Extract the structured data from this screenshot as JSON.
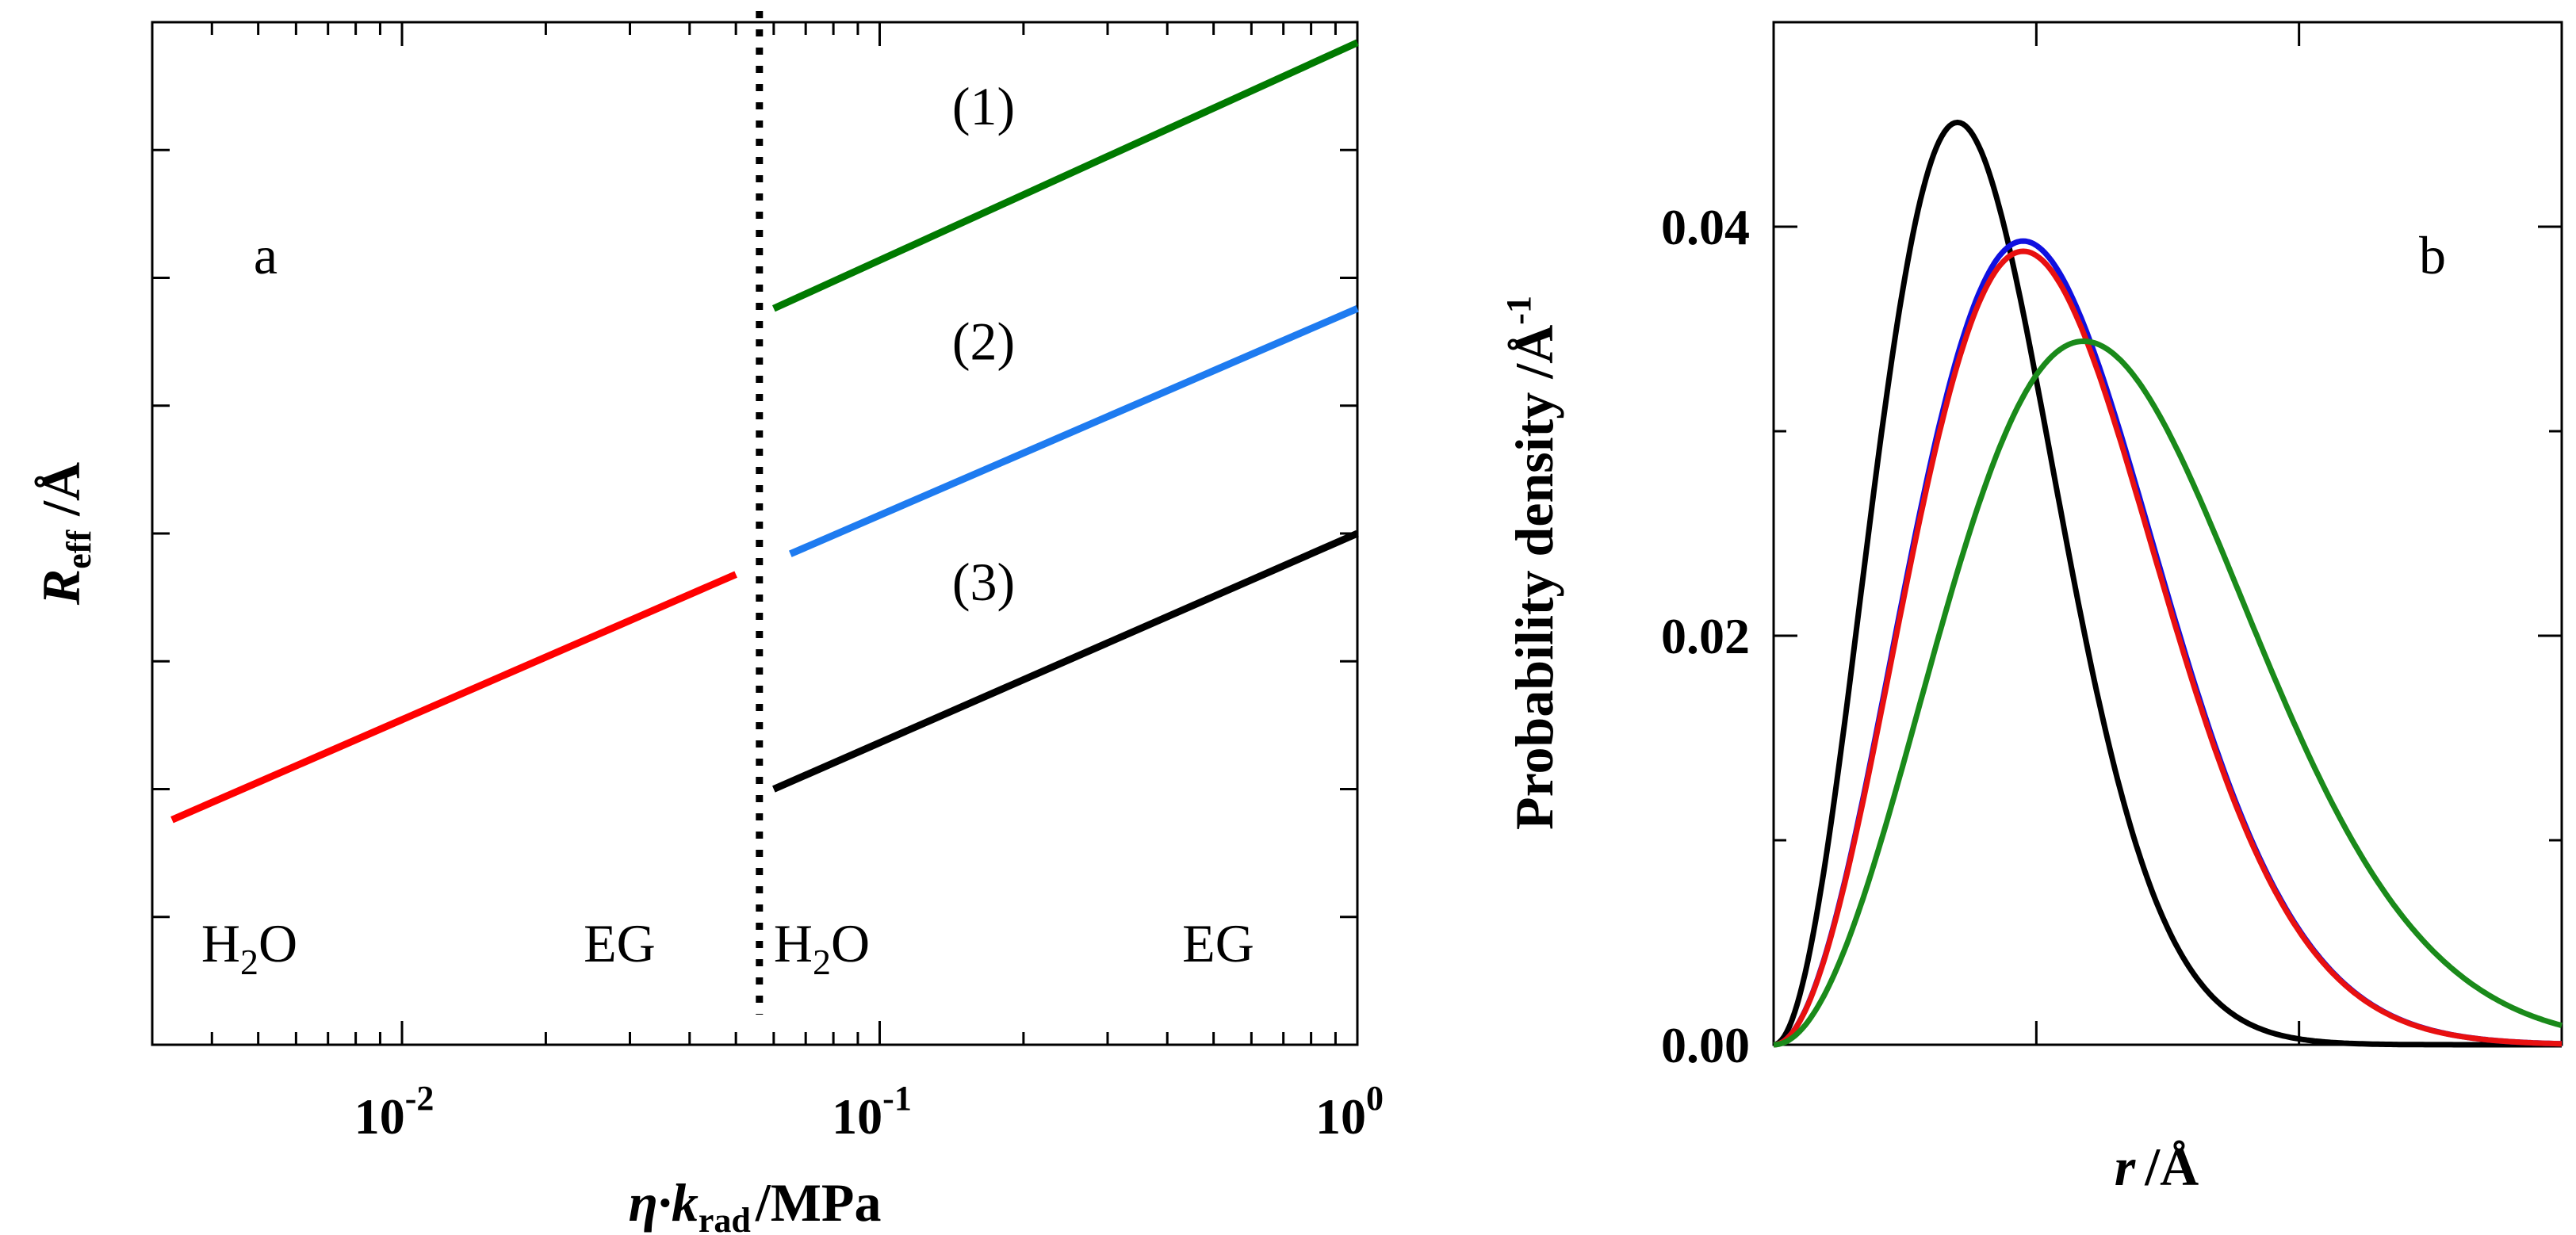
{
  "chart_data": [
    {
      "panel": "a",
      "type": "line",
      "xscale": "log",
      "xlim": [
        0.003,
        1.0
      ],
      "ylim": [
        0.0,
        1.0
      ],
      "xlabel": {
        "main": "η·k",
        "sub": "rad",
        "unit": "/MPa"
      },
      "ylabel": {
        "main": "R",
        "sub": "eff",
        "unit": "/Å"
      },
      "xticks": [
        {
          "value": 0.01,
          "base": "10",
          "exp": "-2"
        },
        {
          "value": 0.1,
          "base": "10",
          "exp": "-1"
        },
        {
          "value": 1.0,
          "base": "10",
          "exp": "0"
        }
      ],
      "yticks_count": 7,
      "panel_label": "a",
      "divider_x": 0.056,
      "series": [
        {
          "name": "",
          "color": "#ff0000",
          "x": [
            0.0033,
            0.05
          ],
          "y": [
            0.22,
            0.46
          ]
        },
        {
          "name": "(1)",
          "color": "#007a00",
          "x": [
            0.06,
            1.0
          ],
          "y": [
            0.72,
            0.98
          ]
        },
        {
          "name": "(2)",
          "color": "#1e7bf0",
          "x": [
            0.065,
            1.0
          ],
          "y": [
            0.48,
            0.72
          ]
        },
        {
          "name": "(3)",
          "color": "#000000",
          "x": [
            0.06,
            1.0
          ],
          "y": [
            0.25,
            0.5
          ]
        }
      ],
      "annotations": [
        {
          "text": "(1)",
          "x": 0.165,
          "y": 0.9
        },
        {
          "text": "(2)",
          "x": 0.165,
          "y": 0.67
        },
        {
          "text": "(3)",
          "x": 0.165,
          "y": 0.435
        }
      ],
      "solvent_labels": [
        {
          "main": "H",
          "sub": "2",
          "rest": "O",
          "x": 0.0038,
          "y": 0.1
        },
        {
          "main": "EG",
          "sub": "",
          "rest": "",
          "x": 0.024,
          "y": 0.1
        },
        {
          "main": "H",
          "sub": "2",
          "rest": "O",
          "x": 0.06,
          "y": 0.1
        },
        {
          "main": "EG",
          "sub": "",
          "rest": "",
          "x": 0.43,
          "y": 0.1
        }
      ]
    },
    {
      "panel": "b",
      "type": "line",
      "xlim": [
        0,
        30
      ],
      "ylim": [
        0,
        0.05
      ],
      "xlabel": {
        "main": "r",
        "unit": "/Å"
      },
      "ylabel": {
        "main": "Probability density /Å",
        "sup": "-1"
      },
      "yticks": [
        {
          "value": 0.0,
          "label": "0.00"
        },
        {
          "value": 0.02,
          "label": "0.02"
        },
        {
          "value": 0.04,
          "label": "0.04"
        }
      ],
      "yminor": [
        0.01,
        0.03
      ],
      "xticks_unlabeled": [
        10,
        20
      ],
      "panel_label": "b",
      "series": [
        {
          "name": "black",
          "color": "#000000",
          "peak_r": 7.0,
          "peak_value": 0.0451
        },
        {
          "name": "blue",
          "color": "#1010e0",
          "peak_r": 9.5,
          "peak_value": 0.0393
        },
        {
          "name": "red",
          "color": "#e81010",
          "peak_r": 9.5,
          "peak_value": 0.0388
        },
        {
          "name": "green",
          "color": "#1a8a1a",
          "peak_r": 11.8,
          "peak_value": 0.0344
        }
      ]
    }
  ]
}
